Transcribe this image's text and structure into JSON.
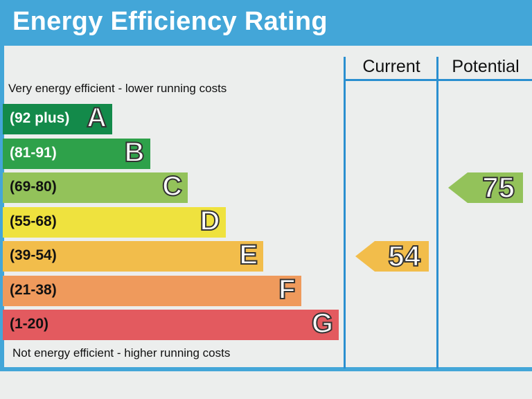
{
  "header": {
    "title": "Energy Efficiency Rating"
  },
  "columns": {
    "current": "Current",
    "potential": "Potential"
  },
  "captions": {
    "top": "Very energy efficient - lower running costs",
    "bottom": "Not energy efficient - higher running costs"
  },
  "chart_data": {
    "type": "bar",
    "bands": [
      {
        "letter": "A",
        "range": "(92 plus)",
        "min": 92,
        "max": 100,
        "color": "#138a4a",
        "text_color": "#ffffff"
      },
      {
        "letter": "B",
        "range": "(81-91)",
        "min": 81,
        "max": 91,
        "color": "#2ea14a",
        "text_color": "#ffffff"
      },
      {
        "letter": "C",
        "range": "(69-80)",
        "min": 69,
        "max": 80,
        "color": "#93c25a",
        "text_color": "#111111"
      },
      {
        "letter": "D",
        "range": "(55-68)",
        "min": 55,
        "max": 68,
        "color": "#efe23e",
        "text_color": "#111111"
      },
      {
        "letter": "E",
        "range": "(39-54)",
        "min": 39,
        "max": 54,
        "color": "#f2bd4b",
        "text_color": "#111111"
      },
      {
        "letter": "F",
        "range": "(21-38)",
        "min": 21,
        "max": 38,
        "color": "#ef9a5c",
        "text_color": "#111111"
      },
      {
        "letter": "G",
        "range": "(1-20)",
        "min": 1,
        "max": 20,
        "color": "#e35a5f",
        "text_color": "#111111"
      }
    ],
    "current": {
      "value": 54,
      "band": "E",
      "color": "#f2bd4b"
    },
    "potential": {
      "value": 75,
      "band": "C",
      "color": "#93c25a"
    }
  }
}
